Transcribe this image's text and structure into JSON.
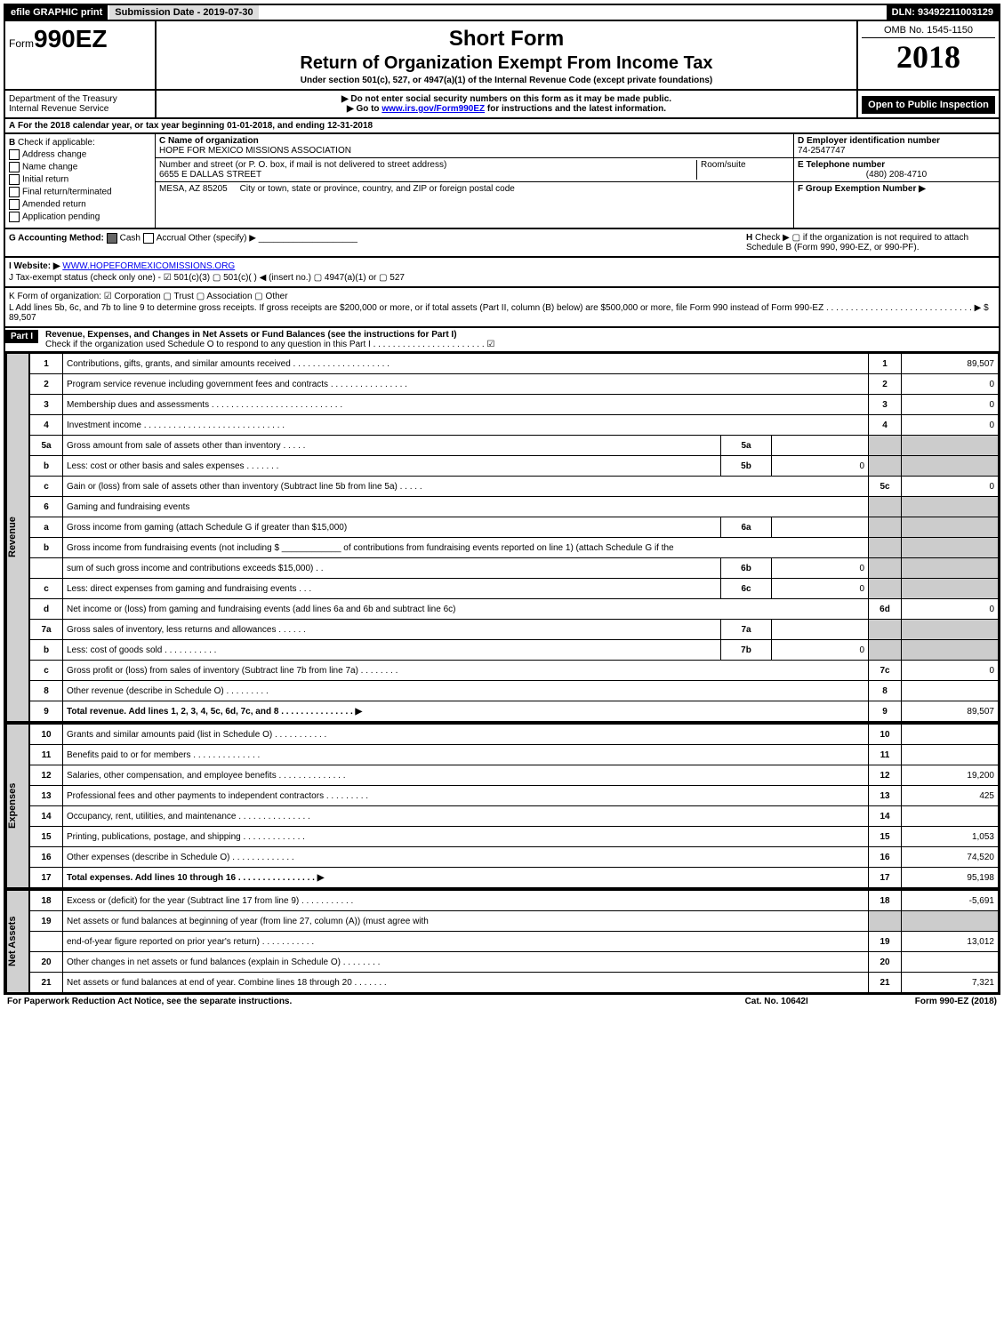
{
  "topbar": {
    "efile": "efile GRAPHIC print",
    "submission": "Submission Date - 2019-07-30",
    "dln": "DLN: 93492211003129"
  },
  "header": {
    "form_prefix": "Form",
    "form_no": "990EZ",
    "short": "Short Form",
    "title": "Return of Organization Exempt From Income Tax",
    "subtitle": "Under section 501(c), 527, or 4947(a)(1) of the Internal Revenue Code (except private foundations)",
    "dept1": "Department of the Treasury",
    "dept2": "Internal Revenue Service",
    "warn1": "▶ Do not enter social security numbers on this form as it may be made public.",
    "warn2_pre": "▶ Go to ",
    "warn2_link": "www.irs.gov/Form990EZ",
    "warn2_post": " for instructions and the latest information.",
    "omb": "OMB No. 1545-1150",
    "year": "2018",
    "open": "Open to Public Inspection"
  },
  "A": {
    "text_pre": "For the 2018 calendar year, or tax year beginning ",
    "begin": "01-01-2018",
    "mid": ", and ending ",
    "end": "12-31-2018"
  },
  "B": {
    "label": "Check if applicable:",
    "opts": [
      "Address change",
      "Name change",
      "Initial return",
      "Final return/terminated",
      "Amended return",
      "Application pending"
    ]
  },
  "C": {
    "label": "C Name of organization",
    "name": "HOPE FOR MEXICO MISSIONS ASSOCIATION",
    "addr_label": "Number and street (or P. O. box, if mail is not delivered to street address)",
    "addr": "6655 E DALLAS STREET",
    "room_label": "Room/suite",
    "city_label": "City or town, state or province, country, and ZIP or foreign postal code",
    "city": "MESA, AZ  85205"
  },
  "D": {
    "label": "D Employer identification number",
    "val": "74-2547747"
  },
  "E": {
    "label": "E Telephone number",
    "val": "(480) 208-4710"
  },
  "F": {
    "label": "F Group Exemption Number  ▶",
    "val": ""
  },
  "G": {
    "label": "G Accounting Method:",
    "cash": "Cash",
    "accrual": "Accrual",
    "other": "Other (specify) ▶"
  },
  "H": {
    "text": "Check ▶  ▢  if the organization is not required to attach Schedule B (Form 990, 990-EZ, or 990-PF)."
  },
  "I": {
    "label": "I Website: ▶",
    "val": "WWW.HOPEFORMEXICOMISSIONS.ORG"
  },
  "J": {
    "text": "J Tax-exempt status (check only one) -  ☑ 501(c)(3)  ▢ 501(c)(  ) ◀ (insert no.)  ▢ 4947(a)(1) or  ▢ 527"
  },
  "K": {
    "text": "K Form of organization:  ☑ Corporation   ▢ Trust   ▢ Association   ▢ Other"
  },
  "L": {
    "text": "L Add lines 5b, 6c, and 7b to line 9 to determine gross receipts. If gross receipts are $200,000 or more, or if total assets (Part II, column (B) below) are $500,000 or more, file Form 990 instead of Form 990-EZ  . . . . . . . . . . . . . . . . . . . . . . . . . . . . . .  ▶ $ 89,507"
  },
  "part1": {
    "label": "Part I",
    "title": "Revenue, Expenses, and Changes in Net Assets or Fund Balances (see the instructions for Part I)",
    "check": "Check if the organization used Schedule O to respond to any question in this Part I . . . . . . . . . . . . . . . . . . . . . . .  ☑"
  },
  "sidebars": {
    "rev": "Revenue",
    "exp": "Expenses",
    "na": "Net Assets"
  },
  "rev": [
    {
      "n": "1",
      "d": "Contributions, gifts, grants, and similar amounts received  . . . . . . . . . . . . . . . . . . . .",
      "r": "1",
      "v": "89,507"
    },
    {
      "n": "2",
      "d": "Program service revenue including government fees and contracts  . . . . . . . . . . . . . . . .",
      "r": "2",
      "v": "0"
    },
    {
      "n": "3",
      "d": "Membership dues and assessments  . . . . . . . . . . . . . . . . . . . . . . . . . . .",
      "r": "3",
      "v": "0"
    },
    {
      "n": "4",
      "d": "Investment income  . . . . . . . . . . . . . . . . . . . . . . . . . . . . .",
      "r": "4",
      "v": "0"
    },
    {
      "n": "5a",
      "d": "Gross amount from sale of assets other than inventory  . . . . .",
      "sub": "5a",
      "sv": ""
    },
    {
      "n": "b",
      "d": "Less: cost or other basis and sales expenses  . . . . . . .",
      "sub": "5b",
      "sv": "0"
    },
    {
      "n": "c",
      "d": "Gain or (loss) from sale of assets other than inventory (Subtract line 5b from line 5a)           .  .  .  .  .",
      "r": "5c",
      "v": "0"
    },
    {
      "n": "6",
      "d": "Gaming and fundraising events"
    },
    {
      "n": "a",
      "d": "Gross income from gaming (attach Schedule G if greater than $15,000)",
      "sub": "6a",
      "sv": ""
    },
    {
      "n": "b",
      "d": "Gross income from fundraising events (not including $ ____________ of contributions from fundraising events reported on line 1) (attach Schedule G if the"
    },
    {
      "n": "",
      "d": "sum of such gross income and contributions exceeds $15,000)       .   .",
      "sub": "6b",
      "sv": "0"
    },
    {
      "n": "c",
      "d": "Less: direct expenses from gaming and fundraising events           .   .   .",
      "sub": "6c",
      "sv": "0"
    },
    {
      "n": "d",
      "d": "Net income or (loss) from gaming and fundraising events (add lines 6a and 6b and subtract line 6c)",
      "r": "6d",
      "v": "0"
    },
    {
      "n": "7a",
      "d": "Gross sales of inventory, less returns and allowances           .   .   .   .   .   .",
      "sub": "7a",
      "sv": ""
    },
    {
      "n": "b",
      "d": "Less: cost of goods sold                          .   .   .   .   .   .   .   .   .   .   .",
      "sub": "7b",
      "sv": "0"
    },
    {
      "n": "c",
      "d": "Gross profit or (loss) from sales of inventory (Subtract line 7b from line 7a)           .   .   .   .   .   .   .   .",
      "r": "7c",
      "v": "0"
    },
    {
      "n": "8",
      "d": "Other revenue (describe in Schedule O)           .   .   .   .   .   .   .   .   .",
      "r": "8",
      "v": ""
    },
    {
      "n": "9",
      "d": "Total revenue. Add lines 1, 2, 3, 4, 5c, 6d, 7c, and 8        .   .   .   .   .   .   .   .   .   .   .   .   .   .   .  ▶",
      "r": "9",
      "v": "89,507",
      "bold": true
    }
  ],
  "exp": [
    {
      "n": "10",
      "d": "Grants and similar amounts paid (list in Schedule O)           .   .   .   .   .   .   .   .   .   .   .",
      "r": "10",
      "v": ""
    },
    {
      "n": "11",
      "d": "Benefits paid to or for members           .   .   .   .   .   .   .   .   .   .   .   .   .   .",
      "r": "11",
      "v": ""
    },
    {
      "n": "12",
      "d": "Salaries, other compensation, and employee benefits        .   .   .   .   .   .   .   .   .   .   .   .   .   .",
      "r": "12",
      "v": "19,200"
    },
    {
      "n": "13",
      "d": "Professional fees and other payments to independent contractors           .   .   .   .   .   .   .   .   .",
      "r": "13",
      "v": "425"
    },
    {
      "n": "14",
      "d": "Occupancy, rent, utilities, and maintenance        .   .   .   .   .   .   .   .   .   .   .   .   .   .   .",
      "r": "14",
      "v": ""
    },
    {
      "n": "15",
      "d": "Printing, publications, postage, and shipping           .   .   .   .   .   .   .   .   .   .   .   .   .",
      "r": "15",
      "v": "1,053"
    },
    {
      "n": "16",
      "d": "Other expenses (describe in Schedule O)           .   .   .   .   .   .   .   .   .   .   .   .   .",
      "r": "16",
      "v": "74,520"
    },
    {
      "n": "17",
      "d": "Total expenses. Add lines 10 through 16        .   .   .   .   .   .   .   .   .   .   .   .   .   .   .   .  ▶",
      "r": "17",
      "v": "95,198",
      "bold": true
    }
  ],
  "na": [
    {
      "n": "18",
      "d": "Excess or (deficit) for the year (Subtract line 17 from line 9)           .   .   .   .   .   .   .   .   .   .   .",
      "r": "18",
      "v": "-5,691"
    },
    {
      "n": "19",
      "d": "Net assets or fund balances at beginning of year (from line 27, column (A)) (must agree with"
    },
    {
      "n": "",
      "d": "end-of-year figure reported on prior year's return)           .   .   .   .   .   .   .   .   .   .   .",
      "r": "19",
      "v": "13,012"
    },
    {
      "n": "20",
      "d": "Other changes in net assets or fund balances (explain in Schedule O)           .   .   .   .   .   .   .   .",
      "r": "20",
      "v": ""
    },
    {
      "n": "21",
      "d": "Net assets or fund balances at end of year. Combine lines 18 through 20           .   .   .   .   .   .   .",
      "r": "21",
      "v": "7,321"
    }
  ],
  "footer": {
    "l": "For Paperwork Reduction Act Notice, see the separate instructions.",
    "c": "Cat. No. 10642I",
    "r": "Form 990-EZ (2018)"
  }
}
